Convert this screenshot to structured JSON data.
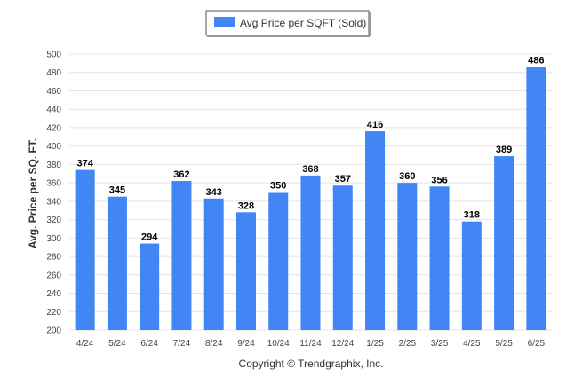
{
  "chart_data": {
    "type": "bar",
    "categories": [
      "4/24",
      "5/24",
      "6/24",
      "7/24",
      "8/24",
      "9/24",
      "10/24",
      "11/24",
      "12/24",
      "1/25",
      "2/25",
      "3/25",
      "4/25",
      "5/25",
      "6/25"
    ],
    "series": [
      {
        "name": "Avg Price per SQFT (Sold)",
        "values": [
          374,
          345,
          294,
          362,
          343,
          328,
          350,
          368,
          357,
          416,
          360,
          356,
          318,
          389,
          486
        ]
      }
    ],
    "ylabel": "Avg. Price per SQ. FT.",
    "xlabel": "",
    "ylim": [
      200,
      500
    ],
    "yticks": [
      200,
      220,
      240,
      260,
      280,
      300,
      320,
      340,
      360,
      380,
      400,
      420,
      440,
      460,
      480,
      500
    ],
    "grid": true,
    "legend": "top-center",
    "bar_color": "#4285f4",
    "data_labels": true
  },
  "footer": {
    "copyright": "Copyright © Trendgraphix, Inc."
  }
}
